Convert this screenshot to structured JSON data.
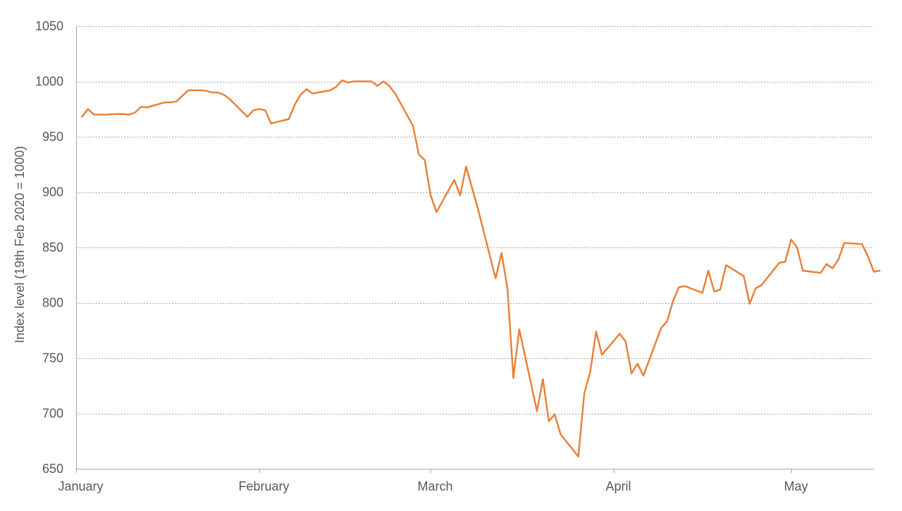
{
  "chart_data": {
    "type": "line",
    "title": "",
    "xlabel": "",
    "ylabel": "Index level (19th Feb 2020 = 1000)",
    "ylim": [
      650,
      1050
    ],
    "yticks": [
      650,
      700,
      750,
      800,
      850,
      900,
      950,
      1000,
      1050
    ],
    "x_range": [
      "2020-01-01",
      "2020-05-15"
    ],
    "month_labels": [
      {
        "label": "January",
        "date": "2020-01-01"
      },
      {
        "label": "February",
        "date": "2020-02-01"
      },
      {
        "label": "March",
        "date": "2020-03-01"
      },
      {
        "label": "April",
        "date": "2020-04-01"
      },
      {
        "label": "May",
        "date": "2020-05-01"
      }
    ],
    "grid": {
      "horizontal": true,
      "style": "dotted"
    },
    "legend": "none",
    "series": [
      {
        "color": "#E8823A",
        "points": [
          [
            "2020-01-02",
            968
          ],
          [
            "2020-01-03",
            975
          ],
          [
            "2020-01-04",
            970
          ],
          [
            "2020-01-06",
            970
          ],
          [
            "2020-01-08",
            970.5
          ],
          [
            "2020-01-09",
            970.5
          ],
          [
            "2020-01-10",
            970
          ],
          [
            "2020-01-11",
            972
          ],
          [
            "2020-01-12",
            977
          ],
          [
            "2020-01-13",
            976.5
          ],
          [
            "2020-01-14",
            978
          ],
          [
            "2020-01-16",
            981
          ],
          [
            "2020-01-17",
            981
          ],
          [
            "2020-01-18",
            982
          ],
          [
            "2020-01-19",
            987
          ],
          [
            "2020-01-20",
            992
          ],
          [
            "2020-01-22",
            992
          ],
          [
            "2020-01-23",
            991.5
          ],
          [
            "2020-01-24",
            990
          ],
          [
            "2020-01-25",
            990
          ],
          [
            "2020-01-26",
            988
          ],
          [
            "2020-01-27",
            984
          ],
          [
            "2020-01-30",
            968
          ],
          [
            "2020-01-31",
            974
          ],
          [
            "2020-02-01",
            975
          ],
          [
            "2020-02-02",
            974
          ],
          [
            "2020-02-03",
            962
          ],
          [
            "2020-02-06",
            966
          ],
          [
            "2020-02-07",
            979
          ],
          [
            "2020-02-08",
            988
          ],
          [
            "2020-02-09",
            993
          ],
          [
            "2020-02-10",
            989
          ],
          [
            "2020-02-13",
            992
          ],
          [
            "2020-02-14",
            995
          ],
          [
            "2020-02-15",
            1001
          ],
          [
            "2020-02-16",
            999
          ],
          [
            "2020-02-17",
            1000
          ],
          [
            "2020-02-20",
            1000
          ],
          [
            "2020-02-21",
            996
          ],
          [
            "2020-02-22",
            1000
          ],
          [
            "2020-02-23",
            996
          ],
          [
            "2020-02-24",
            989
          ],
          [
            "2020-02-27",
            960
          ],
          [
            "2020-02-28",
            934
          ],
          [
            "2020-02-29",
            929
          ],
          [
            "2020-03-01",
            897
          ],
          [
            "2020-03-02",
            882
          ],
          [
            "2020-03-05",
            911
          ],
          [
            "2020-03-06",
            897
          ],
          [
            "2020-03-07",
            923
          ],
          [
            "2020-03-09",
            885
          ],
          [
            "2020-03-12",
            822
          ],
          [
            "2020-03-13",
            845
          ],
          [
            "2020-03-14",
            813
          ],
          [
            "2020-03-15",
            732
          ],
          [
            "2020-03-16",
            776
          ],
          [
            "2020-03-19",
            702
          ],
          [
            "2020-03-20",
            731
          ],
          [
            "2020-03-21",
            693
          ],
          [
            "2020-03-22",
            699
          ],
          [
            "2020-03-23",
            681
          ],
          [
            "2020-03-26",
            661
          ],
          [
            "2020-03-27",
            718
          ],
          [
            "2020-03-28",
            737
          ],
          [
            "2020-03-29",
            774
          ],
          [
            "2020-03-30",
            753
          ],
          [
            "2020-04-02",
            772
          ],
          [
            "2020-04-03",
            765
          ],
          [
            "2020-04-04",
            736
          ],
          [
            "2020-04-05",
            745
          ],
          [
            "2020-04-06",
            734
          ],
          [
            "2020-04-09",
            777
          ],
          [
            "2020-04-10",
            783
          ],
          [
            "2020-04-11",
            801
          ],
          [
            "2020-04-12",
            814
          ],
          [
            "2020-04-13",
            815
          ],
          [
            "2020-04-16",
            809
          ],
          [
            "2020-04-17",
            829
          ],
          [
            "2020-04-18",
            810
          ],
          [
            "2020-04-19",
            812
          ],
          [
            "2020-04-20",
            834
          ],
          [
            "2020-04-23",
            824
          ],
          [
            "2020-04-24",
            799
          ],
          [
            "2020-04-25",
            813
          ],
          [
            "2020-04-26",
            816
          ],
          [
            "2020-04-29",
            836
          ],
          [
            "2020-04-30",
            837
          ],
          [
            "2020-05-01",
            857
          ],
          [
            "2020-05-02",
            850
          ],
          [
            "2020-05-03",
            829
          ],
          [
            "2020-05-06",
            827
          ],
          [
            "2020-05-07",
            835
          ],
          [
            "2020-05-08",
            831
          ],
          [
            "2020-05-09",
            839
          ],
          [
            "2020-05-10",
            854
          ],
          [
            "2020-05-13",
            853
          ],
          [
            "2020-05-14",
            842
          ],
          [
            "2020-05-15",
            828
          ],
          [
            "2020-05-16",
            829
          ]
        ]
      }
    ]
  }
}
